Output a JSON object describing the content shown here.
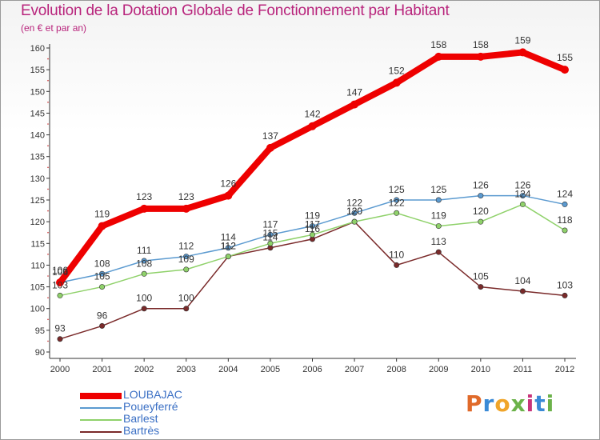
{
  "chart_data": {
    "type": "line",
    "title": "Evolution de la Dotation Globale de Fonctionnement par Habitant",
    "subtitle": "(en € et par an)",
    "x": [
      "2000",
      "2001",
      "2002",
      "2003",
      "2004",
      "2005",
      "2006",
      "2007",
      "2008",
      "2009",
      "2010",
      "2011",
      "2012"
    ],
    "ylim": [
      90,
      160
    ],
    "yticks": [
      90,
      95,
      100,
      105,
      110,
      115,
      120,
      125,
      130,
      135,
      140,
      145,
      150,
      155,
      160
    ],
    "grid": false,
    "series": [
      {
        "name": "LOUBAJAC",
        "color": "#ee0000",
        "values": [
          106,
          119,
          123,
          123,
          126,
          137,
          142,
          147,
          152,
          158,
          158,
          159,
          155
        ]
      },
      {
        "name": "Poueyferré",
        "color": "#5b9ad0",
        "values": [
          106,
          108,
          111,
          112,
          114,
          117,
          119,
          122,
          125,
          125,
          126,
          126,
          124
        ]
      },
      {
        "name": "Barlest",
        "color": "#8fd16a",
        "values": [
          103,
          105,
          108,
          109,
          112,
          115,
          117,
          120,
          122,
          119,
          120,
          124,
          118
        ]
      },
      {
        "name": "Bartrès",
        "color": "#7a2a2a",
        "values": [
          93,
          96,
          100,
          100,
          112,
          114,
          116,
          120,
          110,
          113,
          105,
          104,
          103
        ]
      }
    ],
    "legend_position": "bottom-left"
  },
  "logo_text": [
    "P",
    "r",
    "o",
    "x",
    "i",
    "t",
    "i"
  ]
}
